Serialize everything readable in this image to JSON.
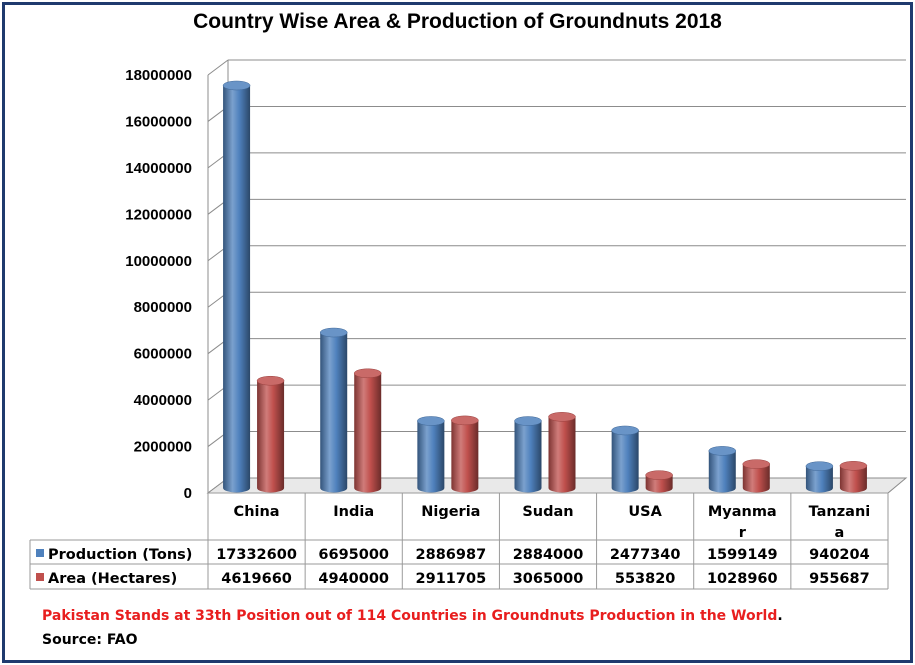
{
  "chart_data": {
    "type": "bar",
    "title": "Country Wise Area & Production of Groundnuts 2018",
    "categories": [
      [
        "China"
      ],
      [
        "India"
      ],
      [
        "Nigeria"
      ],
      [
        "Sudan"
      ],
      [
        "USA"
      ],
      [
        "Myanma",
        "r"
      ],
      [
        "Tanzani",
        "a"
      ]
    ],
    "series": [
      {
        "name": "Production (Tons)",
        "color": "#4f81bd",
        "values": [
          17332600,
          6695000,
          2886987,
          2884000,
          2477340,
          1599149,
          940204
        ]
      },
      {
        "name": "Area (Hectares)",
        "color": "#c0504d",
        "values": [
          4619660,
          4940000,
          2911705,
          3065000,
          553820,
          1028960,
          955687
        ]
      }
    ],
    "ylim": [
      0,
      18000000
    ],
    "yticks": [
      "0",
      "2000000",
      "4000000",
      "6000000",
      "8000000",
      "10000000",
      "12000000",
      "14000000",
      "16000000",
      "18000000"
    ],
    "grid": true,
    "legend_placement": "data table below chart"
  },
  "footer": {
    "note": "Pakistan Stands at 33th Position out of 114 Countries in Groundnuts Production in the World",
    "note_end": ".",
    "source": "Source: FAO"
  },
  "colors": {
    "frame": "#1f3a6e",
    "note_text": "#e81e1e"
  }
}
